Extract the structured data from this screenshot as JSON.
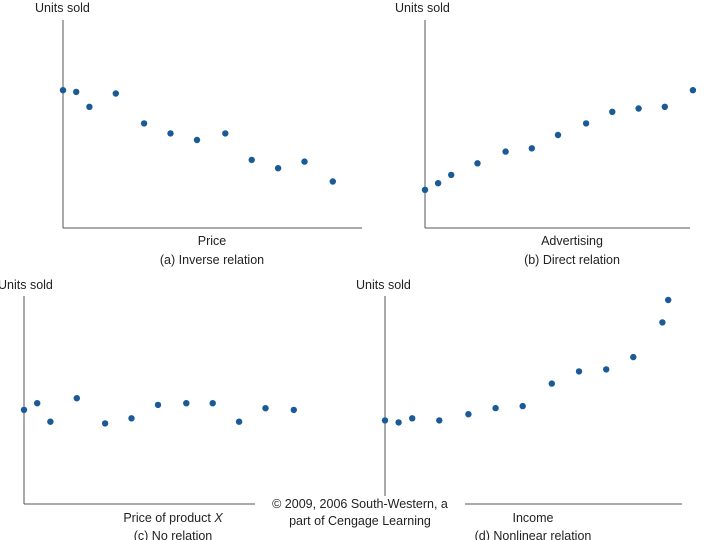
{
  "colors": {
    "point": "#1a5a96",
    "axis": "#555555",
    "text": "#222222",
    "background": "#ffffff"
  },
  "chart_data": [
    {
      "type": "scatter",
      "ylabel": "Units sold",
      "xlabel": "Price",
      "caption_letter": "(a)",
      "caption_text": "Inverse relation",
      "xlim": [
        0,
        15
      ],
      "ylim": [
        0,
        10
      ],
      "points": [
        {
          "x": 0.0,
          "y": 8.3
        },
        {
          "x": 0.7,
          "y": 8.2
        },
        {
          "x": 1.4,
          "y": 7.3
        },
        {
          "x": 2.8,
          "y": 8.1
        },
        {
          "x": 4.3,
          "y": 6.3
        },
        {
          "x": 5.7,
          "y": 5.7
        },
        {
          "x": 7.1,
          "y": 5.3
        },
        {
          "x": 8.6,
          "y": 5.7
        },
        {
          "x": 10.0,
          "y": 4.1
        },
        {
          "x": 11.4,
          "y": 3.6
        },
        {
          "x": 12.8,
          "y": 4.0
        },
        {
          "x": 14.3,
          "y": 2.8
        }
      ]
    },
    {
      "type": "scatter",
      "ylabel": "Units sold",
      "xlabel": "Advertising",
      "caption_letter": "(b)",
      "caption_text": "Direct relation",
      "xlim": [
        0,
        15
      ],
      "ylim": [
        0,
        10
      ],
      "points": [
        {
          "x": 0.0,
          "y": 2.3
        },
        {
          "x": 0.7,
          "y": 2.7
        },
        {
          "x": 1.4,
          "y": 3.2
        },
        {
          "x": 2.8,
          "y": 3.9
        },
        {
          "x": 4.3,
          "y": 4.6
        },
        {
          "x": 5.7,
          "y": 4.8
        },
        {
          "x": 7.1,
          "y": 5.6
        },
        {
          "x": 8.6,
          "y": 6.3
        },
        {
          "x": 10.0,
          "y": 7.0
        },
        {
          "x": 11.4,
          "y": 7.2
        },
        {
          "x": 12.8,
          "y": 7.3
        },
        {
          "x": 14.3,
          "y": 8.3
        }
      ]
    },
    {
      "type": "scatter",
      "ylabel": "Units sold",
      "xlabel": "Price of product X",
      "caption_letter": "(c)",
      "caption_text": "No relation",
      "xlim": [
        0,
        15
      ],
      "ylim": [
        0,
        10
      ],
      "points": [
        {
          "x": 0.0,
          "y": 5.6
        },
        {
          "x": 0.7,
          "y": 6.0
        },
        {
          "x": 1.4,
          "y": 4.9
        },
        {
          "x": 2.8,
          "y": 6.3
        },
        {
          "x": 4.3,
          "y": 4.8
        },
        {
          "x": 5.7,
          "y": 5.1
        },
        {
          "x": 7.1,
          "y": 5.9
        },
        {
          "x": 8.6,
          "y": 6.0
        },
        {
          "x": 10.0,
          "y": 6.0
        },
        {
          "x": 11.4,
          "y": 4.9
        },
        {
          "x": 12.8,
          "y": 5.7
        },
        {
          "x": 14.3,
          "y": 5.6
        }
      ]
    },
    {
      "type": "scatter",
      "ylabel": "Units sold",
      "xlabel": "Income",
      "caption_letter": "(d)",
      "caption_text": "Nonlinear relation",
      "xlim": [
        0,
        15
      ],
      "ylim": [
        0,
        10
      ],
      "points": [
        {
          "x": 0.0,
          "y": 4.1
        },
        {
          "x": 0.7,
          "y": 4.0
        },
        {
          "x": 1.4,
          "y": 4.2
        },
        {
          "x": 2.8,
          "y": 4.1
        },
        {
          "x": 4.3,
          "y": 4.4
        },
        {
          "x": 5.7,
          "y": 4.7
        },
        {
          "x": 7.1,
          "y": 4.8
        },
        {
          "x": 8.6,
          "y": 5.9
        },
        {
          "x": 10.0,
          "y": 6.5
        },
        {
          "x": 11.4,
          "y": 6.6
        },
        {
          "x": 12.8,
          "y": 7.2
        },
        {
          "x": 14.3,
          "y": 8.9
        },
        {
          "x": 14.6,
          "y": 10.0
        }
      ]
    }
  ],
  "copyright": {
    "line1": "© 2009, 2006 South-Western, a",
    "line2": "part of Cengage Learning"
  }
}
